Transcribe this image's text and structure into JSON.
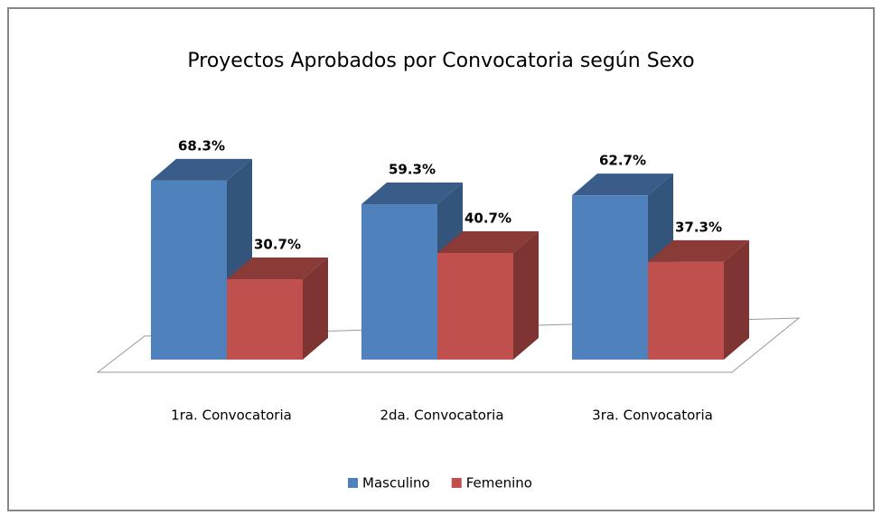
{
  "chart_data": {
    "type": "bar3d",
    "title": "Proyectos Aprobados por Convocatoria según Sexo",
    "categories": [
      "1ra. Convocatoria",
      "2da. Convocatoria",
      "3ra. Convocatoria"
    ],
    "series": [
      {
        "name": "Masculino",
        "color": "#4f81bd",
        "values": [
          68.3,
          59.3,
          62.7
        ],
        "value_labels": [
          "68.3%",
          "59.3%",
          "62.7%"
        ]
      },
      {
        "name": "Femenino",
        "color": "#c0504d",
        "values": [
          30.7,
          40.7,
          37.3
        ],
        "value_labels": [
          "30.7%",
          "40.7%",
          "37.3%"
        ]
      }
    ],
    "legend": "bottom"
  }
}
